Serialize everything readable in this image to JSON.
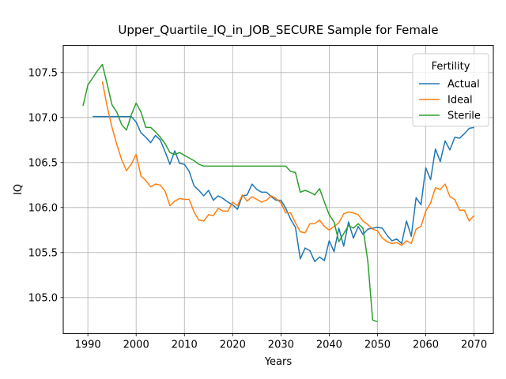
{
  "chart_data": {
    "type": "line",
    "title": "Upper_Quartile_IQ_in_JOB_SECURE Sample for Female",
    "xlabel": "Years",
    "ylabel": "IQ",
    "xlim": [
      1984.9,
      2074.0
    ],
    "ylim": [
      104.6,
      107.8
    ],
    "xticks": [
      1990,
      2000,
      2010,
      2020,
      2030,
      2040,
      2050,
      2060,
      2070
    ],
    "yticks": [
      105.0,
      105.5,
      106.0,
      106.5,
      107.0,
      107.5
    ],
    "xtick_labels": [
      "1990",
      "2000",
      "2010",
      "2020",
      "2030",
      "2040",
      "2050",
      "2060",
      "2070"
    ],
    "ytick_labels": [
      "105.0",
      "105.5",
      "106.0",
      "106.5",
      "107.0",
      "107.5"
    ],
    "grid": true,
    "legend": {
      "title": "Fertility",
      "placement": "top-right"
    },
    "series": [
      {
        "name": "Actual",
        "color": "#1f77b4",
        "x": [
          1991,
          1992,
          1993,
          1994,
          1995,
          1996,
          1997,
          1998,
          1999,
          2000,
          2001,
          2002,
          2003,
          2004,
          2005,
          2006,
          2007,
          2008,
          2009,
          2010,
          2011,
          2012,
          2013,
          2014,
          2015,
          2016,
          2017,
          2018,
          2019,
          2020,
          2021,
          2022,
          2023,
          2024,
          2025,
          2026,
          2027,
          2028,
          2029,
          2030,
          2031,
          2032,
          2033,
          2034,
          2035,
          2036,
          2037,
          2038,
          2039,
          2040,
          2041,
          2042,
          2043,
          2044,
          2045,
          2046,
          2047,
          2048,
          2049,
          2050,
          2051,
          2052,
          2053,
          2054,
          2055,
          2056,
          2057,
          2058,
          2059,
          2060,
          2061,
          2062,
          2063,
          2064,
          2065,
          2066,
          2067,
          2068,
          2069,
          2070
        ],
        "values": [
          107.01,
          107.01,
          107.01,
          107.01,
          107.01,
          107.01,
          107.01,
          107.01,
          107.01,
          106.95,
          106.83,
          106.78,
          106.72,
          106.8,
          106.75,
          106.62,
          106.48,
          106.63,
          106.49,
          106.48,
          106.4,
          106.24,
          106.19,
          106.13,
          106.19,
          106.08,
          106.13,
          106.1,
          106.06,
          106.03,
          105.98,
          106.13,
          106.14,
          106.26,
          106.2,
          106.17,
          106.17,
          106.12,
          106.08,
          106.08,
          105.99,
          105.87,
          105.78,
          105.43,
          105.55,
          105.52,
          105.4,
          105.45,
          105.41,
          105.63,
          105.51,
          105.77,
          105.57,
          105.84,
          105.66,
          105.79,
          105.7,
          105.76,
          105.77,
          105.78,
          105.77,
          105.69,
          105.63,
          105.65,
          105.6,
          105.85,
          105.68,
          106.11,
          106.03,
          106.44,
          106.31,
          106.65,
          106.51,
          106.74,
          106.64,
          106.78,
          106.77,
          106.82,
          106.88,
          106.89
        ]
      },
      {
        "name": "Ideal",
        "color": "#ff7f0e",
        "x": [
          1993,
          1994,
          1995,
          1996,
          1997,
          1998,
          1999,
          2000,
          2001,
          2002,
          2003,
          2004,
          2005,
          2006,
          2007,
          2008,
          2009,
          2010,
          2011,
          2012,
          2013,
          2014,
          2015,
          2016,
          2017,
          2018,
          2019,
          2020,
          2021,
          2022,
          2023,
          2024,
          2025,
          2026,
          2027,
          2028,
          2029,
          2030,
          2031,
          2032,
          2033,
          2034,
          2035,
          2036,
          2037,
          2038,
          2039,
          2040,
          2041,
          2042,
          2043,
          2044,
          2045,
          2046,
          2047,
          2048,
          2049,
          2050,
          2051,
          2052,
          2053,
          2054,
          2055,
          2056,
          2057,
          2058,
          2059,
          2060,
          2061,
          2062,
          2063,
          2064,
          2065,
          2066,
          2067,
          2068,
          2069,
          2070
        ],
        "values": [
          107.4,
          107.12,
          106.89,
          106.7,
          106.53,
          106.41,
          106.48,
          106.59,
          106.35,
          106.3,
          106.23,
          106.26,
          106.25,
          106.18,
          106.02,
          106.07,
          106.1,
          106.09,
          106.09,
          105.95,
          105.86,
          105.85,
          105.92,
          105.91,
          105.99,
          105.96,
          105.96,
          106.06,
          106.02,
          106.14,
          106.07,
          106.12,
          106.09,
          106.06,
          106.08,
          106.13,
          106.1,
          106.05,
          105.94,
          105.94,
          105.83,
          105.73,
          105.72,
          105.82,
          105.82,
          105.86,
          105.79,
          105.75,
          105.79,
          105.83,
          105.93,
          105.95,
          105.94,
          105.92,
          105.85,
          105.81,
          105.76,
          105.74,
          105.66,
          105.62,
          105.6,
          105.61,
          105.58,
          105.63,
          105.6,
          105.76,
          105.79,
          105.96,
          106.05,
          106.22,
          106.2,
          106.26,
          106.12,
          106.09,
          105.97,
          105.97,
          105.85,
          105.91
        ]
      },
      {
        "name": "Sterile",
        "color": "#2ca02c",
        "x": [
          1989,
          1990,
          1991,
          1992,
          1993,
          1994,
          1995,
          1996,
          1997,
          1998,
          1999,
          2000,
          2001,
          2002,
          2003,
          2004,
          2005,
          2006,
          2007,
          2008,
          2009,
          2010,
          2011,
          2012,
          2013,
          2014,
          2015,
          2016,
          2017,
          2018,
          2019,
          2020,
          2021,
          2022,
          2023,
          2024,
          2025,
          2026,
          2027,
          2028,
          2029,
          2030,
          2031,
          2032,
          2033,
          2034,
          2035,
          2036,
          2037,
          2038,
          2039,
          2040,
          2041,
          2042,
          2043,
          2044,
          2045,
          2046,
          2047,
          2048,
          2049,
          2050
        ],
        "values": [
          107.13,
          107.36,
          107.44,
          107.52,
          107.59,
          107.37,
          107.14,
          107.06,
          106.92,
          106.86,
          107.03,
          107.16,
          107.06,
          106.89,
          106.89,
          106.84,
          106.78,
          106.71,
          106.61,
          106.59,
          106.61,
          106.58,
          106.55,
          106.52,
          106.48,
          106.46,
          106.46,
          106.46,
          106.46,
          106.46,
          106.46,
          106.46,
          106.46,
          106.46,
          106.46,
          106.46,
          106.46,
          106.46,
          106.46,
          106.46,
          106.46,
          106.46,
          106.46,
          106.4,
          106.39,
          106.17,
          106.19,
          106.17,
          106.14,
          106.21,
          106.06,
          105.92,
          105.84,
          105.62,
          105.71,
          105.8,
          105.77,
          105.82,
          105.77,
          105.4,
          104.75,
          104.73
        ]
      }
    ]
  }
}
